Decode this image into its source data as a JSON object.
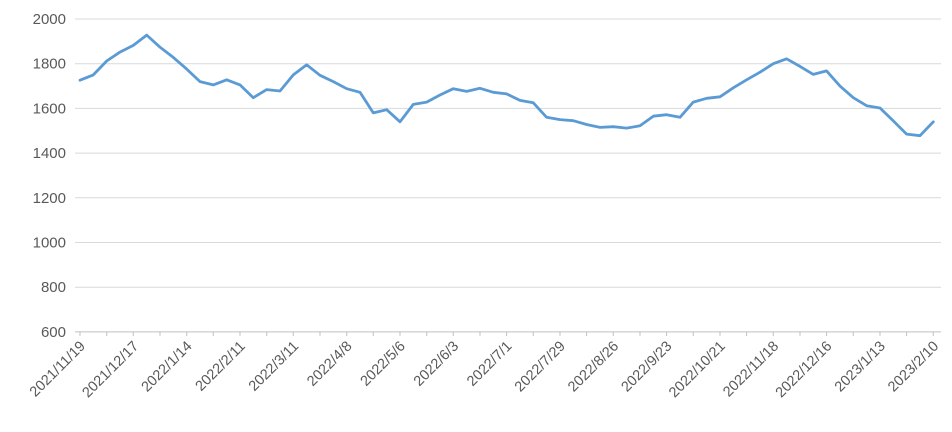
{
  "chart_data": {
    "type": "line",
    "title": "",
    "xlabel": "",
    "ylabel": "",
    "ylim": [
      600,
      2000
    ],
    "ytick_step": 200,
    "yticks": [
      2000,
      1800,
      1600,
      1400,
      1200,
      1000,
      800,
      600
    ],
    "grid": true,
    "legend_position": "none",
    "line_color": "#5b9bd5",
    "grid_color": "#d9d9d9",
    "axis_color": "#bfbfbf",
    "label_color": "#595959",
    "x_label_every_n_points": 4,
    "x_tick_every_n_points": 2,
    "x_tick_labels": [
      "2021/11/19",
      "2021/12/17",
      "2022/1/14",
      "2022/2/11",
      "2022/3/11",
      "2022/4/8",
      "2022/5/6",
      "2022/6/3",
      "2022/7/1",
      "2022/7/29",
      "2022/8/26",
      "2022/9/23",
      "2022/10/21",
      "2022/11/18",
      "2022/12/16",
      "2023/1/13",
      "2023/2/10"
    ],
    "x": [
      "2021/11/19",
      "2021/11/26",
      "2021/12/3",
      "2021/12/10",
      "2021/12/17",
      "2021/12/24",
      "2021/12/31",
      "2022/1/7",
      "2022/1/14",
      "2022/1/21",
      "2022/1/28",
      "2022/2/4",
      "2022/2/11",
      "2022/2/18",
      "2022/2/25",
      "2022/3/4",
      "2022/3/11",
      "2022/3/18",
      "2022/3/25",
      "2022/4/1",
      "2022/4/8",
      "2022/4/15",
      "2022/4/22",
      "2022/4/29",
      "2022/5/6",
      "2022/5/13",
      "2022/5/20",
      "2022/5/27",
      "2022/6/3",
      "2022/6/10",
      "2022/6/17",
      "2022/6/24",
      "2022/7/1",
      "2022/7/8",
      "2022/7/15",
      "2022/7/22",
      "2022/7/29",
      "2022/8/5",
      "2022/8/12",
      "2022/8/19",
      "2022/8/26",
      "2022/9/2",
      "2022/9/9",
      "2022/9/16",
      "2022/9/23",
      "2022/9/30",
      "2022/10/7",
      "2022/10/14",
      "2022/10/21",
      "2022/10/28",
      "2022/11/4",
      "2022/11/11",
      "2022/11/18",
      "2022/11/25",
      "2022/12/2",
      "2022/12/9",
      "2022/12/16",
      "2022/12/23",
      "2022/12/30",
      "2023/1/6",
      "2023/1/13",
      "2023/1/20",
      "2023/1/27",
      "2023/2/3",
      "2023/2/10"
    ],
    "values": [
      1726,
      1750,
      1812,
      1852,
      1882,
      1928,
      1874,
      1828,
      1776,
      1720,
      1705,
      1728,
      1705,
      1648,
      1684,
      1678,
      1750,
      1795,
      1748,
      1720,
      1688,
      1672,
      1580,
      1594,
      1540,
      1618,
      1628,
      1660,
      1688,
      1676,
      1690,
      1672,
      1665,
      1636,
      1625,
      1560,
      1550,
      1545,
      1528,
      1515,
      1518,
      1512,
      1522,
      1565,
      1572,
      1560,
      1628,
      1645,
      1652,
      1692,
      1728,
      1762,
      1800,
      1822,
      1788,
      1752,
      1768,
      1700,
      1648,
      1612,
      1602,
      1544,
      1485,
      1478,
      1540
    ]
  }
}
